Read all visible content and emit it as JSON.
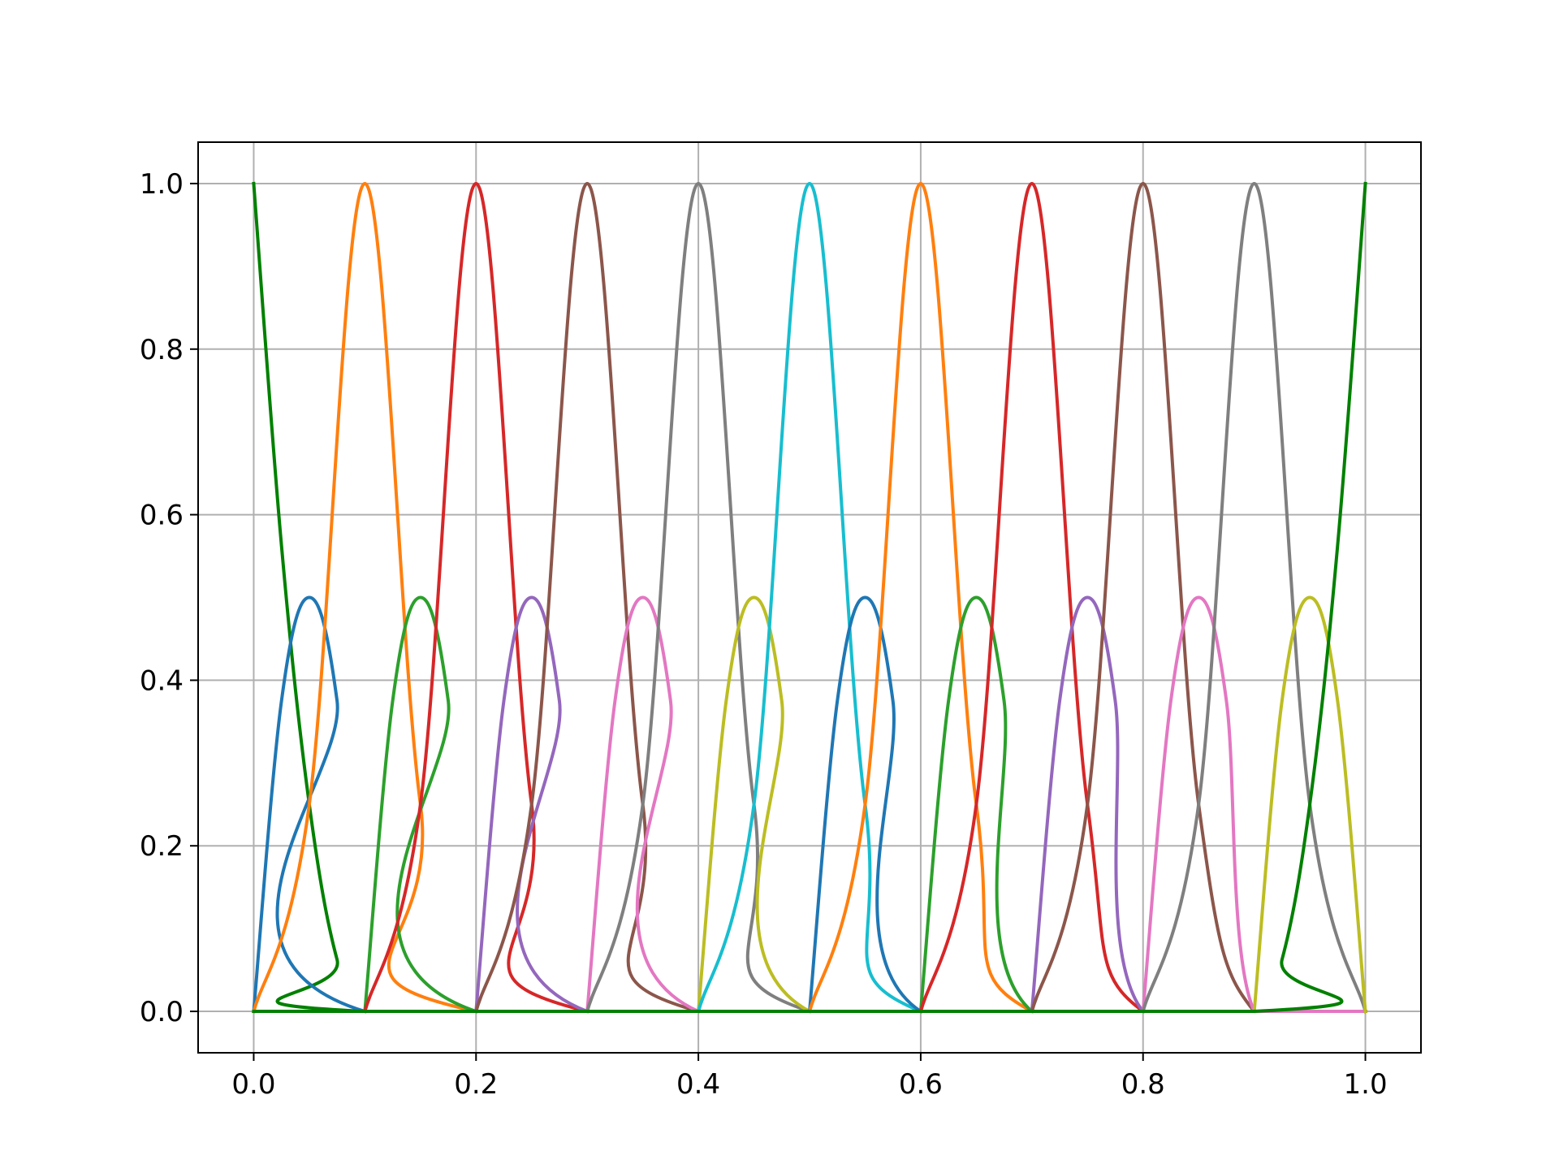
{
  "chart_data": {
    "type": "line",
    "title": "",
    "xlabel": "",
    "ylabel": "",
    "xlim": [
      -0.05,
      1.05
    ],
    "ylim": [
      -0.05,
      1.05
    ],
    "xticks": [
      0.0,
      0.2,
      0.4,
      0.6,
      0.8,
      1.0
    ],
    "xtick_labels": [
      "0.0",
      "0.2",
      "0.4",
      "0.6",
      "0.8",
      "1.0"
    ],
    "yticks": [
      0.0,
      0.2,
      0.4,
      0.6,
      0.8,
      1.0
    ],
    "ytick_labels": [
      "0.0",
      "0.2",
      "0.4",
      "0.6",
      "0.8",
      "1.0"
    ],
    "grid": true,
    "legend": "none",
    "description_of_shape": "quadratic piecewise basis functions on a uniform mesh with node spacing 0.1",
    "series": [
      {
        "color": "#008000",
        "points": [
          [
            0.0,
            1.0
          ],
          [
            0.025,
            0.5625
          ],
          [
            0.05,
            0.25
          ],
          [
            0.075,
            0.0625
          ],
          [
            0.1,
            0.0
          ],
          [
            1.0,
            0.0
          ]
        ]
      },
      {
        "color": "#1f77b4",
        "points": [
          [
            0.0,
            0.0
          ],
          [
            0.025,
            0.375
          ],
          [
            0.05,
            0.5
          ],
          [
            0.075,
            0.375
          ],
          [
            0.1,
            0.0
          ],
          [
            1.0,
            0.0
          ]
        ]
      },
      {
        "color": "#ff7f0e",
        "points": [
          [
            0.0,
            0.0
          ],
          [
            0.05,
            0.25
          ],
          [
            0.1,
            1.0
          ],
          [
            0.15,
            0.25
          ],
          [
            0.2,
            0.0
          ],
          [
            1.0,
            0.0
          ]
        ]
      },
      {
        "color": "#2ca02c",
        "points": [
          [
            0.1,
            0.0
          ],
          [
            0.125,
            0.375
          ],
          [
            0.15,
            0.5
          ],
          [
            0.175,
            0.375
          ],
          [
            0.2,
            0.0
          ],
          [
            1.0,
            0.0
          ]
        ]
      },
      {
        "color": "#d62728",
        "points": [
          [
            0.1,
            0.0
          ],
          [
            0.15,
            0.25
          ],
          [
            0.2,
            1.0
          ],
          [
            0.25,
            0.25
          ],
          [
            0.3,
            0.0
          ],
          [
            1.0,
            0.0
          ]
        ]
      },
      {
        "color": "#9467bd",
        "points": [
          [
            0.2,
            0.0
          ],
          [
            0.225,
            0.375
          ],
          [
            0.25,
            0.5
          ],
          [
            0.275,
            0.375
          ],
          [
            0.3,
            0.0
          ],
          [
            1.0,
            0.0
          ]
        ]
      },
      {
        "color": "#8c564b",
        "points": [
          [
            0.2,
            0.0
          ],
          [
            0.25,
            0.25
          ],
          [
            0.3,
            1.0
          ],
          [
            0.35,
            0.25
          ],
          [
            0.4,
            0.0
          ],
          [
            1.0,
            0.0
          ]
        ]
      },
      {
        "color": "#e377c2",
        "points": [
          [
            0.3,
            0.0
          ],
          [
            0.325,
            0.375
          ],
          [
            0.35,
            0.5
          ],
          [
            0.375,
            0.375
          ],
          [
            0.4,
            0.0
          ],
          [
            1.0,
            0.0
          ]
        ]
      },
      {
        "color": "#7f7f7f",
        "points": [
          [
            0.3,
            0.0
          ],
          [
            0.35,
            0.25
          ],
          [
            0.4,
            1.0
          ],
          [
            0.45,
            0.25
          ],
          [
            0.5,
            0.0
          ],
          [
            1.0,
            0.0
          ]
        ]
      },
      {
        "color": "#bcbd22",
        "points": [
          [
            0.4,
            0.0
          ],
          [
            0.425,
            0.375
          ],
          [
            0.45,
            0.5
          ],
          [
            0.475,
            0.375
          ],
          [
            0.5,
            0.0
          ],
          [
            1.0,
            0.0
          ]
        ]
      },
      {
        "color": "#17becf",
        "points": [
          [
            0.4,
            0.0
          ],
          [
            0.45,
            0.25
          ],
          [
            0.5,
            1.0
          ],
          [
            0.55,
            0.25
          ],
          [
            0.6,
            0.0
          ],
          [
            1.0,
            0.0
          ]
        ]
      },
      {
        "color": "#1f77b4",
        "points": [
          [
            0.5,
            0.0
          ],
          [
            0.525,
            0.375
          ],
          [
            0.55,
            0.5
          ],
          [
            0.575,
            0.375
          ],
          [
            0.6,
            0.0
          ],
          [
            1.0,
            0.0
          ]
        ]
      },
      {
        "color": "#ff7f0e",
        "points": [
          [
            0.5,
            0.0
          ],
          [
            0.55,
            0.25
          ],
          [
            0.6,
            1.0
          ],
          [
            0.65,
            0.25
          ],
          [
            0.7,
            0.0
          ],
          [
            1.0,
            0.0
          ]
        ]
      },
      {
        "color": "#2ca02c",
        "points": [
          [
            0.6,
            0.0
          ],
          [
            0.625,
            0.375
          ],
          [
            0.65,
            0.5
          ],
          [
            0.675,
            0.375
          ],
          [
            0.7,
            0.0
          ],
          [
            1.0,
            0.0
          ]
        ]
      },
      {
        "color": "#d62728",
        "points": [
          [
            0.6,
            0.0
          ],
          [
            0.65,
            0.25
          ],
          [
            0.7,
            1.0
          ],
          [
            0.75,
            0.25
          ],
          [
            0.8,
            0.0
          ],
          [
            1.0,
            0.0
          ]
        ]
      },
      {
        "color": "#9467bd",
        "points": [
          [
            0.7,
            0.0
          ],
          [
            0.725,
            0.375
          ],
          [
            0.75,
            0.5
          ],
          [
            0.775,
            0.375
          ],
          [
            0.8,
            0.0
          ],
          [
            1.0,
            0.0
          ]
        ]
      },
      {
        "color": "#8c564b",
        "points": [
          [
            0.7,
            0.0
          ],
          [
            0.75,
            0.25
          ],
          [
            0.8,
            1.0
          ],
          [
            0.85,
            0.25
          ],
          [
            0.9,
            0.0
          ],
          [
            1.0,
            0.0
          ]
        ]
      },
      {
        "color": "#e377c2",
        "points": [
          [
            0.8,
            0.0
          ],
          [
            0.825,
            0.375
          ],
          [
            0.85,
            0.5
          ],
          [
            0.875,
            0.375
          ],
          [
            0.9,
            0.0
          ],
          [
            1.0,
            0.0
          ]
        ]
      },
      {
        "color": "#7f7f7f",
        "points": [
          [
            0.8,
            0.0
          ],
          [
            0.85,
            0.25
          ],
          [
            0.9,
            1.0
          ],
          [
            0.95,
            0.25
          ],
          [
            1.0,
            0.0
          ]
        ]
      },
      {
        "color": "#bcbd22",
        "points": [
          [
            0.9,
            0.0
          ],
          [
            0.925,
            0.375
          ],
          [
            0.95,
            0.5
          ],
          [
            0.975,
            0.375
          ],
          [
            1.0,
            0.0
          ]
        ]
      },
      {
        "color": "#008000",
        "points": [
          [
            0.0,
            0.0
          ],
          [
            0.9,
            0.0
          ],
          [
            0.925,
            0.0625
          ],
          [
            0.95,
            0.25
          ],
          [
            0.975,
            0.5625
          ],
          [
            1.0,
            1.0
          ]
        ]
      }
    ]
  }
}
